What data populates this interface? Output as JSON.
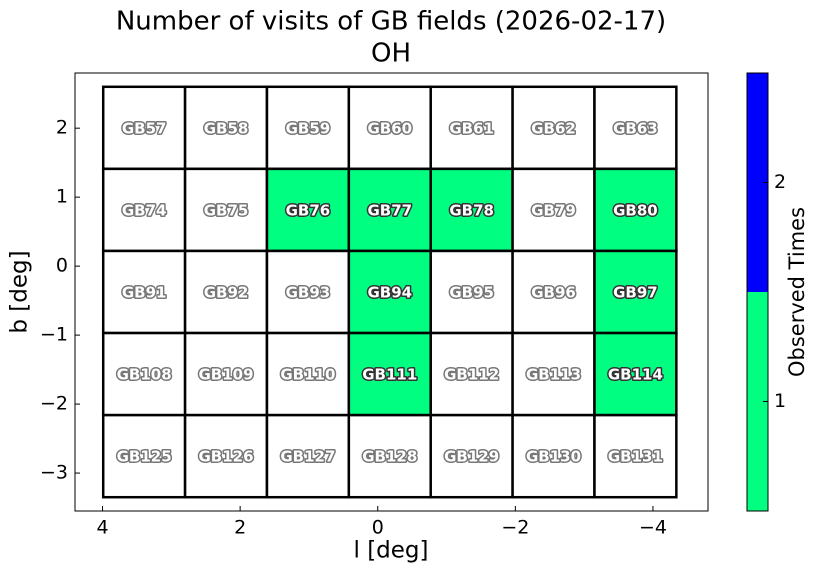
{
  "chart_data": {
    "type": "heatmap",
    "title": "Number of visits of GB fields (2026-02-17)",
    "subtitle": "OH",
    "x_label": "l [deg]",
    "y_label": "b [deg]",
    "xlim": [
      4.4,
      -4.8
    ],
    "ylim": [
      -3.55,
      2.8
    ],
    "xticks": [
      4,
      2,
      0,
      {
        "value": -2,
        "label": "−2"
      },
      {
        "value": -4,
        "label": "−4"
      }
    ],
    "yticks": [
      2,
      1,
      0,
      {
        "value": -1,
        "label": "−1"
      },
      {
        "value": -2,
        "label": "−2"
      },
      {
        "value": -3,
        "label": "−3"
      }
    ],
    "x_edges": [
      3.99,
      2.8,
      1.61,
      0.42,
      -0.77,
      -1.96,
      -3.15,
      -4.34
    ],
    "y_edges": [
      2.6,
      1.41,
      0.22,
      -0.97,
      -2.16,
      -3.35
    ],
    "labels": [
      [
        "GB57",
        "GB58",
        "GB59",
        "GB60",
        "GB61",
        "GB62",
        "GB63"
      ],
      [
        "GB74",
        "GB75",
        "GB76",
        "GB77",
        "GB78",
        "GB79",
        "GB80"
      ],
      [
        "GB91",
        "GB92",
        "GB93",
        "GB94",
        "GB95",
        "GB96",
        "GB97"
      ],
      [
        "GB108",
        "GB109",
        "GB110",
        "GB111",
        "GB112",
        "GB113",
        "GB114"
      ],
      [
        "GB125",
        "GB126",
        "GB127",
        "GB128",
        "GB129",
        "GB130",
        "GB131"
      ]
    ],
    "values": [
      [
        null,
        null,
        null,
        null,
        null,
        null,
        null
      ],
      [
        null,
        null,
        1,
        1,
        1,
        null,
        1
      ],
      [
        null,
        null,
        null,
        1,
        null,
        null,
        1
      ],
      [
        null,
        null,
        null,
        1,
        null,
        null,
        1
      ],
      [
        null,
        null,
        null,
        null,
        null,
        null,
        null
      ]
    ],
    "colorbar": {
      "label": "Observed Times",
      "lim": [
        0.5,
        2.5
      ],
      "ticks": [
        1,
        2
      ],
      "bounds": [
        0.5,
        1.5,
        2.5
      ],
      "colors": [
        "#00ff80",
        "#0000ff"
      ]
    }
  }
}
